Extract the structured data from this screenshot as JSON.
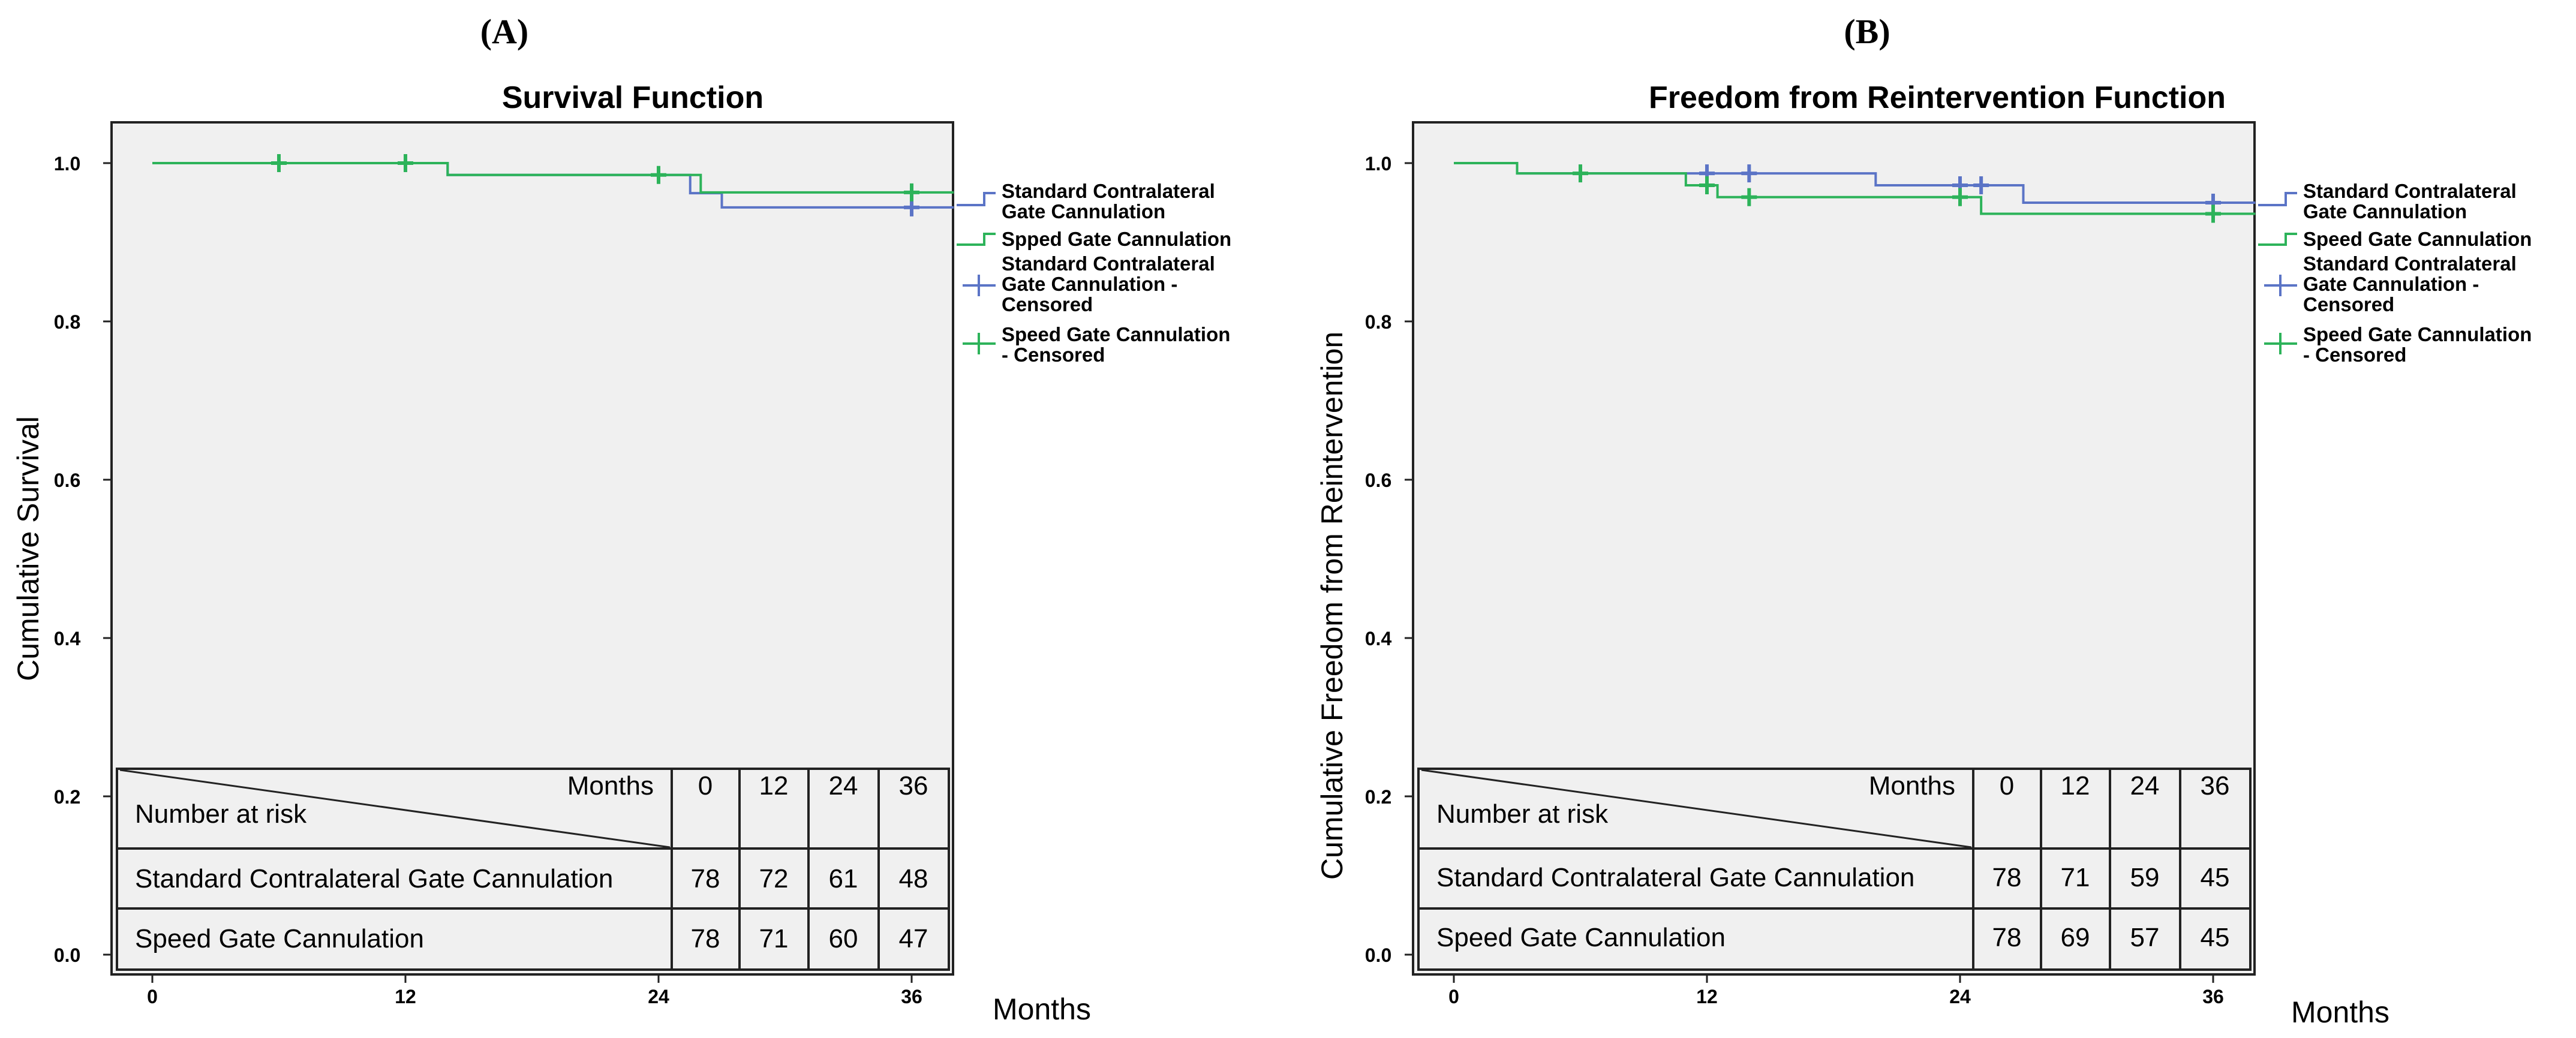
{
  "chart_data": [
    {
      "type": "line",
      "subtype": "kaplan-meier-step",
      "panel_label": "(A)",
      "title": "Survival Function",
      "xlabel": "Months",
      "ylabel": "Cumulative Survival",
      "xlim": [
        -3,
        39
      ],
      "ylim": [
        -0.05,
        1.06
      ],
      "xticks": [
        0,
        12,
        24,
        36
      ],
      "yticks": [
        0.0,
        0.2,
        0.4,
        0.6,
        0.8,
        1.0
      ],
      "xtick_labels": [
        "0",
        "12",
        "24",
        "36"
      ],
      "ytick_labels": [
        "0.0",
        "0.2",
        "0.4",
        "0.6",
        "0.8",
        "1.0"
      ],
      "grid": false,
      "legend_position": "right",
      "legend": [
        {
          "label": "Standard Contralateral Gate Cannulation",
          "kind": "line",
          "color": "#5b74c6"
        },
        {
          "label": "Spped Gate Cannulation",
          "kind": "line",
          "color": "#2db35a"
        },
        {
          "label": "Standard Contralateral Gate Cannulation - Censored",
          "kind": "censor",
          "color": "#5b74c6"
        },
        {
          "label": "Speed Gate Cannulation - Censored",
          "kind": "censor",
          "color": "#2db35a"
        }
      ],
      "series": [
        {
          "name": "Standard Contralateral Gate Cannulation",
          "color": "#5b74c6",
          "steps": [
            [
              0,
              1.0
            ],
            [
              14,
              0.985
            ],
            [
              25.5,
              0.962
            ],
            [
              27,
              0.944
            ],
            [
              38,
              0.944
            ]
          ],
          "censored": [
            [
              36,
              0.944
            ]
          ]
        },
        {
          "name": "Speed Gate Cannulation",
          "color": "#2db35a",
          "steps": [
            [
              0,
              1.0
            ],
            [
              14,
              0.985
            ],
            [
              26,
              0.963
            ],
            [
              38,
              0.963
            ]
          ],
          "censored": [
            [
              6,
              1.0
            ],
            [
              12,
              1.0
            ],
            [
              24,
              0.985
            ],
            [
              36,
              0.963
            ]
          ]
        }
      ],
      "risk_table": {
        "header_label": "Months",
        "row_label_header": "Number at risk",
        "times": [
          "0",
          "12",
          "24",
          "36"
        ],
        "rows": [
          {
            "name": "Standard Contralateral Gate Cannulation",
            "values": [
              "78",
              "72",
              "61",
              "48"
            ]
          },
          {
            "name": "Speed Gate Cannulation",
            "values": [
              "78",
              "71",
              "60",
              "47"
            ]
          }
        ]
      }
    },
    {
      "type": "line",
      "subtype": "kaplan-meier-step",
      "panel_label": "(B)",
      "title": "Freedom from Reintervention Function",
      "xlabel": "Months",
      "ylabel": "Cumulative Freedom from Reintervention",
      "xlim": [
        -3,
        39
      ],
      "ylim": [
        -0.05,
        1.06
      ],
      "xticks": [
        0,
        12,
        24,
        36
      ],
      "yticks": [
        0.0,
        0.2,
        0.4,
        0.6,
        0.8,
        1.0
      ],
      "xtick_labels": [
        "0",
        "12",
        "24",
        "36"
      ],
      "ytick_labels": [
        "0.0",
        "0.2",
        "0.4",
        "0.6",
        "0.8",
        "1.0"
      ],
      "grid": false,
      "legend_position": "right",
      "legend": [
        {
          "label": "Standard Contralateral Gate Cannulation",
          "kind": "line",
          "color": "#5b74c6"
        },
        {
          "label": "Speed Gate Cannulation",
          "kind": "line",
          "color": "#2db35a"
        },
        {
          "label": "Standard Contralateral Gate Cannulation - Censored",
          "kind": "censor",
          "color": "#5b74c6"
        },
        {
          "label": "Speed Gate Cannulation - Censored",
          "kind": "censor",
          "color": "#2db35a"
        }
      ],
      "series": [
        {
          "name": "Standard Contralateral Gate Cannulation",
          "color": "#5b74c6",
          "steps": [
            [
              0,
              1.0
            ],
            [
              3,
              0.987
            ],
            [
              20,
              0.972
            ],
            [
              27,
              0.95
            ],
            [
              38,
              0.95
            ]
          ],
          "censored": [
            [
              12,
              0.987
            ],
            [
              14,
              0.987
            ],
            [
              24,
              0.972
            ],
            [
              25,
              0.972
            ],
            [
              36,
              0.95
            ]
          ]
        },
        {
          "name": "Speed Gate Cannulation",
          "color": "#2db35a",
          "steps": [
            [
              0,
              1.0
            ],
            [
              3,
              0.987
            ],
            [
              11,
              0.972
            ],
            [
              12.5,
              0.957
            ],
            [
              25,
              0.936
            ],
            [
              38,
              0.936
            ]
          ],
          "censored": [
            [
              6,
              0.987
            ],
            [
              12,
              0.972
            ],
            [
              14,
              0.957
            ],
            [
              24,
              0.957
            ],
            [
              36,
              0.936
            ]
          ]
        }
      ],
      "risk_table": {
        "header_label": "Months",
        "row_label_header": "Number at risk",
        "times": [
          "0",
          "12",
          "24",
          "36"
        ],
        "rows": [
          {
            "name": "Standard Contralateral Gate Cannulation",
            "values": [
              "78",
              "71",
              "59",
              "45"
            ]
          },
          {
            "name": "Speed Gate Cannulation",
            "values": [
              "78",
              "69",
              "57",
              "45"
            ]
          }
        ]
      }
    }
  ]
}
